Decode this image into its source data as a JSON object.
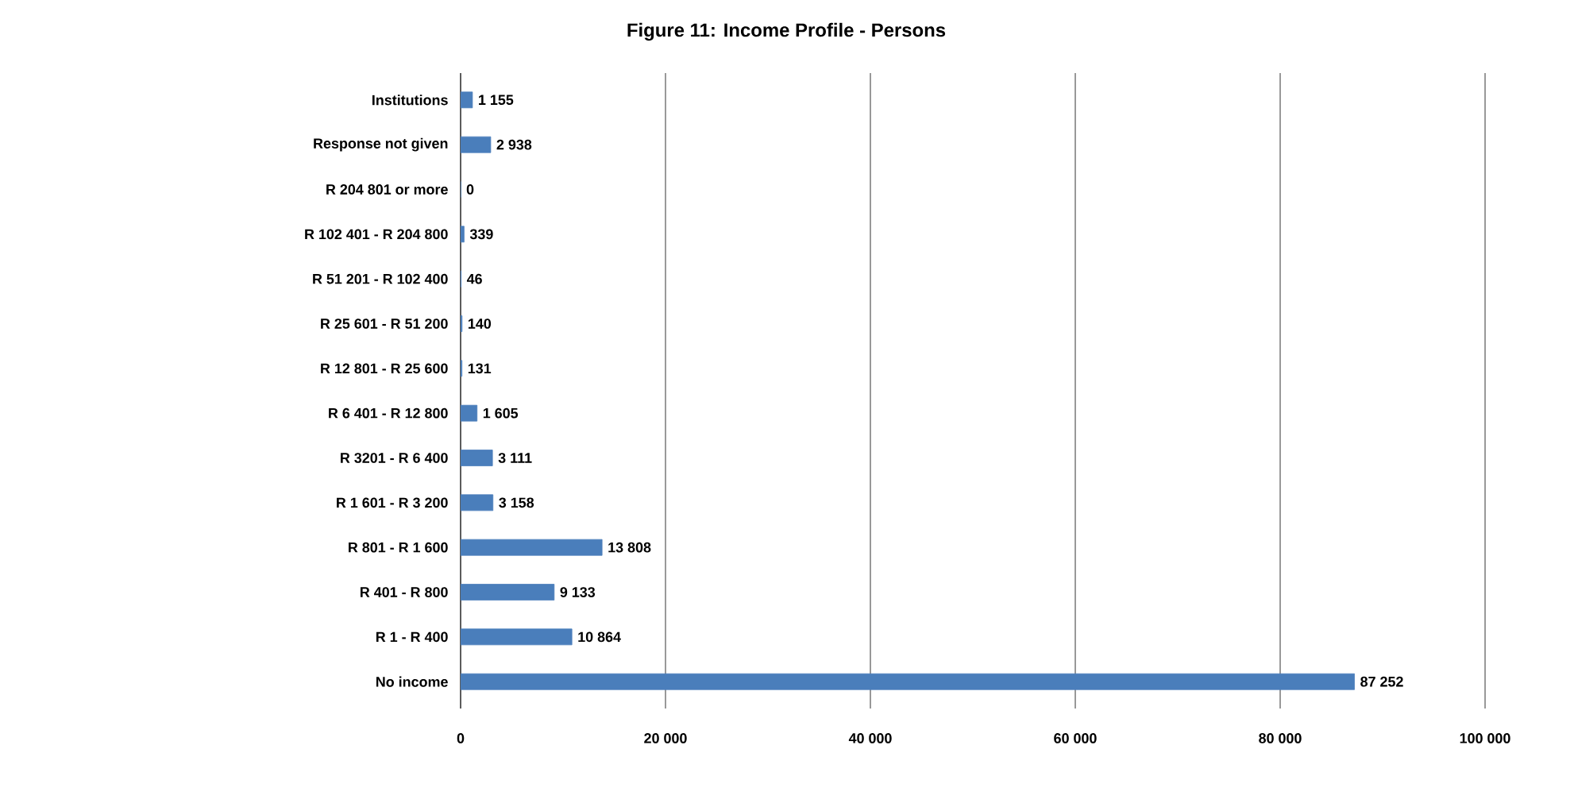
{
  "chart_data": {
    "type": "bar",
    "orientation": "horizontal",
    "title": "Figure 11: Income Profile - Persons",
    "categories": [
      "Institutions",
      "Response not given",
      "R 204 801 or more",
      "R 102 401 - R 204 800",
      "R 51 201 - R 102 400",
      "R 25 601 - R 51 200",
      "R 12 801 - R 25 600",
      "R 6 401 - R 12 800",
      "R 3201 - R 6 400",
      "R 1 601 - R 3 200",
      "R 801 - R 1 600",
      "R 401 - R 800",
      "R 1 - R 400",
      "No income"
    ],
    "values": [
      1155,
      2938,
      0,
      339,
      46,
      140,
      131,
      1605,
      3111,
      3158,
      13808,
      9133,
      10864,
      87252
    ],
    "value_labels": [
      "1 155",
      "2 938",
      "0",
      "339",
      "46",
      "140",
      "131",
      "1 605",
      "3 111",
      "3 158",
      "13 808",
      "9 133",
      "10 864",
      "87 252"
    ],
    "color": "#4a7ebb",
    "xlim": [
      0,
      100000
    ],
    "xticks": [
      {
        "value": 0,
        "label": "0"
      },
      {
        "value": 20000,
        "label": "20 000"
      },
      {
        "value": 40000,
        "label": "40 000"
      },
      {
        "value": 60000,
        "label": "60 000"
      },
      {
        "value": 80000,
        "label": "80 000"
      },
      {
        "value": 100000,
        "label": "100 000"
      }
    ],
    "grid": "x"
  }
}
